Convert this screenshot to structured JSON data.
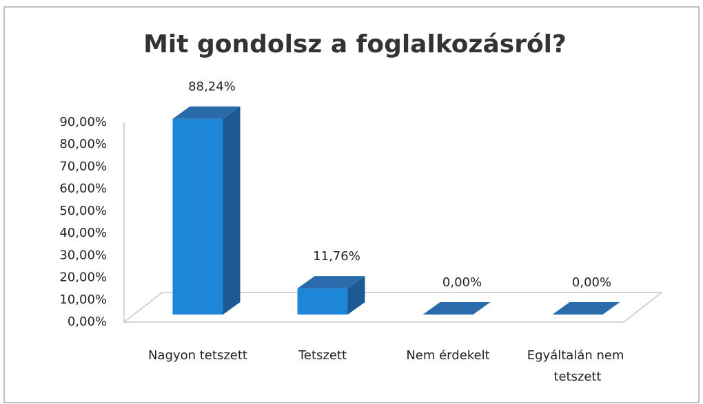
{
  "chart_data": {
    "type": "bar3d",
    "title": "Mit gondolsz a foglalkozásról?",
    "categories": [
      "Nagyon tetszett",
      "Tetszett",
      "Nem érdekelt",
      "Egyáltalán nem tetszett"
    ],
    "values": [
      88.24,
      11.76,
      0,
      0
    ],
    "value_labels": [
      "88,24%",
      "11,76%",
      "0,00%",
      "0,00%"
    ],
    "color": "#1e86d6",
    "ylim": [
      0,
      90
    ],
    "yticks": [
      {
        "value": 0,
        "label": "0,00%"
      },
      {
        "value": 10,
        "label": "10,00%"
      },
      {
        "value": 20,
        "label": "20,00%"
      },
      {
        "value": 30,
        "label": "30,00%"
      },
      {
        "value": 40,
        "label": "40,00%"
      },
      {
        "value": 50,
        "label": "50,00%"
      },
      {
        "value": 60,
        "label": "60,00%"
      },
      {
        "value": 70,
        "label": "70,00%"
      },
      {
        "value": 80,
        "label": "80,00%"
      },
      {
        "value": 90,
        "label": "90,00%"
      }
    ]
  }
}
